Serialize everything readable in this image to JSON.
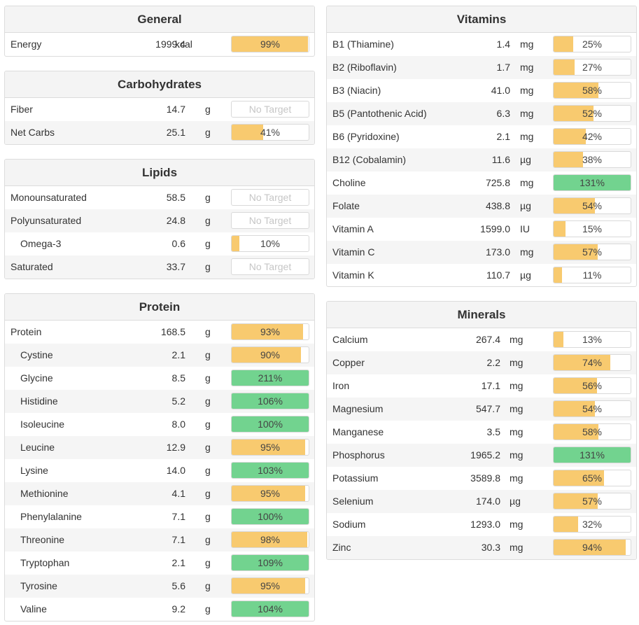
{
  "colors": {
    "under": "#f8ca6f",
    "met": "#72d38f",
    "border": "#dcdcdc",
    "header_bg": "#f4f4f4"
  },
  "panels": {
    "general": {
      "title": "General",
      "rows": [
        {
          "name": "Energy",
          "amount": "1999.4",
          "unit": "kcal",
          "pct": "99%",
          "pct_value": 99,
          "indent": false
        }
      ]
    },
    "carbohydrates": {
      "title": "Carbohydrates",
      "rows": [
        {
          "name": "Fiber",
          "amount": "14.7",
          "unit": "g",
          "pct": "No Target",
          "pct_value": null,
          "indent": false
        },
        {
          "name": "Net Carbs",
          "amount": "25.1",
          "unit": "g",
          "pct": "41%",
          "pct_value": 41,
          "indent": false
        }
      ]
    },
    "lipids": {
      "title": "Lipids",
      "rows": [
        {
          "name": "Monounsaturated",
          "amount": "58.5",
          "unit": "g",
          "pct": "No Target",
          "pct_value": null,
          "indent": false
        },
        {
          "name": "Polyunsaturated",
          "amount": "24.8",
          "unit": "g",
          "pct": "No Target",
          "pct_value": null,
          "indent": false
        },
        {
          "name": "Omega-3",
          "amount": "0.6",
          "unit": "g",
          "pct": "10%",
          "pct_value": 10,
          "indent": true
        },
        {
          "name": "Saturated",
          "amount": "33.7",
          "unit": "g",
          "pct": "No Target",
          "pct_value": null,
          "indent": false
        }
      ]
    },
    "protein": {
      "title": "Protein",
      "rows": [
        {
          "name": "Protein",
          "amount": "168.5",
          "unit": "g",
          "pct": "93%",
          "pct_value": 93,
          "indent": false
        },
        {
          "name": "Cystine",
          "amount": "2.1",
          "unit": "g",
          "pct": "90%",
          "pct_value": 90,
          "indent": true
        },
        {
          "name": "Glycine",
          "amount": "8.5",
          "unit": "g",
          "pct": "211%",
          "pct_value": 211,
          "indent": true
        },
        {
          "name": "Histidine",
          "amount": "5.2",
          "unit": "g",
          "pct": "106%",
          "pct_value": 106,
          "indent": true
        },
        {
          "name": "Isoleucine",
          "amount": "8.0",
          "unit": "g",
          "pct": "100%",
          "pct_value": 100,
          "indent": true
        },
        {
          "name": "Leucine",
          "amount": "12.9",
          "unit": "g",
          "pct": "95%",
          "pct_value": 95,
          "indent": true
        },
        {
          "name": "Lysine",
          "amount": "14.0",
          "unit": "g",
          "pct": "103%",
          "pct_value": 103,
          "indent": true
        },
        {
          "name": "Methionine",
          "amount": "4.1",
          "unit": "g",
          "pct": "95%",
          "pct_value": 95,
          "indent": true
        },
        {
          "name": "Phenylalanine",
          "amount": "7.1",
          "unit": "g",
          "pct": "100%",
          "pct_value": 100,
          "indent": true
        },
        {
          "name": "Threonine",
          "amount": "7.1",
          "unit": "g",
          "pct": "98%",
          "pct_value": 98,
          "indent": true
        },
        {
          "name": "Tryptophan",
          "amount": "2.1",
          "unit": "g",
          "pct": "109%",
          "pct_value": 109,
          "indent": true
        },
        {
          "name": "Tyrosine",
          "amount": "5.6",
          "unit": "g",
          "pct": "95%",
          "pct_value": 95,
          "indent": true
        },
        {
          "name": "Valine",
          "amount": "9.2",
          "unit": "g",
          "pct": "104%",
          "pct_value": 104,
          "indent": true
        }
      ]
    },
    "vitamins": {
      "title": "Vitamins",
      "rows": [
        {
          "name": "B1 (Thiamine)",
          "amount": "1.4",
          "unit": "mg",
          "pct": "25%",
          "pct_value": 25
        },
        {
          "name": "B2 (Riboflavin)",
          "amount": "1.7",
          "unit": "mg",
          "pct": "27%",
          "pct_value": 27
        },
        {
          "name": "B3 (Niacin)",
          "amount": "41.0",
          "unit": "mg",
          "pct": "58%",
          "pct_value": 58
        },
        {
          "name": "B5 (Pantothenic Acid)",
          "amount": "6.3",
          "unit": "mg",
          "pct": "52%",
          "pct_value": 52
        },
        {
          "name": "B6 (Pyridoxine)",
          "amount": "2.1",
          "unit": "mg",
          "pct": "42%",
          "pct_value": 42
        },
        {
          "name": "B12 (Cobalamin)",
          "amount": "11.6",
          "unit": "µg",
          "pct": "38%",
          "pct_value": 38
        },
        {
          "name": "Choline",
          "amount": "725.8",
          "unit": "mg",
          "pct": "131%",
          "pct_value": 131
        },
        {
          "name": "Folate",
          "amount": "438.8",
          "unit": "µg",
          "pct": "54%",
          "pct_value": 54
        },
        {
          "name": "Vitamin A",
          "amount": "1599.0",
          "unit": "IU",
          "pct": "15%",
          "pct_value": 15
        },
        {
          "name": "Vitamin C",
          "amount": "173.0",
          "unit": "mg",
          "pct": "57%",
          "pct_value": 57
        },
        {
          "name": "Vitamin K",
          "amount": "110.7",
          "unit": "µg",
          "pct": "11%",
          "pct_value": 11
        }
      ]
    },
    "minerals": {
      "title": "Minerals",
      "rows": [
        {
          "name": "Calcium",
          "amount": "267.4",
          "unit": "mg",
          "pct": "13%",
          "pct_value": 13
        },
        {
          "name": "Copper",
          "amount": "2.2",
          "unit": "mg",
          "pct": "74%",
          "pct_value": 74
        },
        {
          "name": "Iron",
          "amount": "17.1",
          "unit": "mg",
          "pct": "56%",
          "pct_value": 56
        },
        {
          "name": "Magnesium",
          "amount": "547.7",
          "unit": "mg",
          "pct": "54%",
          "pct_value": 54
        },
        {
          "name": "Manganese",
          "amount": "3.5",
          "unit": "mg",
          "pct": "58%",
          "pct_value": 58
        },
        {
          "name": "Phosphorus",
          "amount": "1965.2",
          "unit": "mg",
          "pct": "131%",
          "pct_value": 131
        },
        {
          "name": "Potassium",
          "amount": "3589.8",
          "unit": "mg",
          "pct": "65%",
          "pct_value": 65
        },
        {
          "name": "Selenium",
          "amount": "174.0",
          "unit": "µg",
          "pct": "57%",
          "pct_value": 57
        },
        {
          "name": "Sodium",
          "amount": "1293.0",
          "unit": "mg",
          "pct": "32%",
          "pct_value": 32
        },
        {
          "name": "Zinc",
          "amount": "30.3",
          "unit": "mg",
          "pct": "94%",
          "pct_value": 94
        }
      ]
    }
  }
}
